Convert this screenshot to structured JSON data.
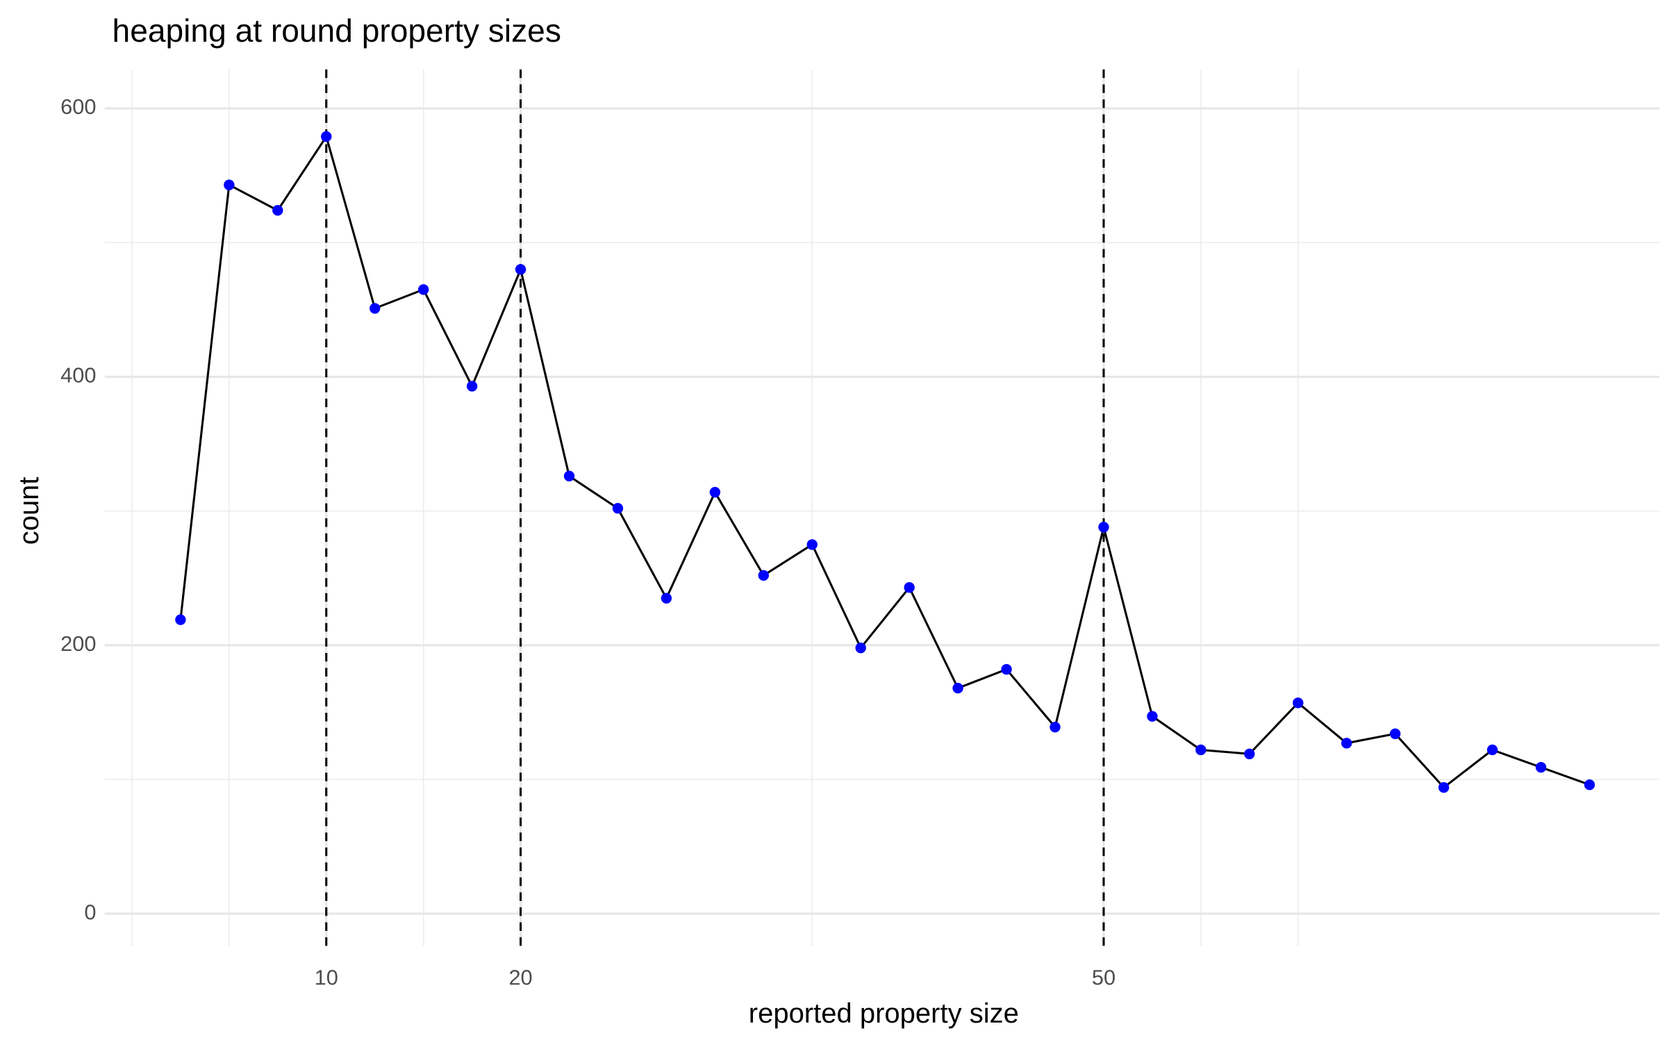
{
  "chart_data": {
    "type": "line",
    "title": "heaping at round property sizes",
    "x_label": "reported property size",
    "y_label": "count",
    "x": [
      2.5,
      5,
      7.5,
      10,
      12.5,
      15,
      17.5,
      20,
      22.5,
      25,
      27.5,
      30,
      32.5,
      35,
      37.5,
      40,
      42.5,
      45,
      47.5,
      50,
      52.5,
      55,
      57.5,
      60,
      62.5,
      65,
      67.5,
      70,
      72.5,
      75
    ],
    "series": [
      {
        "name": "count",
        "color": "#000000",
        "point_color": "#0000ff",
        "values": [
          219,
          543,
          524,
          579,
          451,
          465,
          393,
          480,
          326,
          302,
          235,
          314,
          252,
          275,
          198,
          243,
          168,
          182,
          139,
          288,
          147,
          122,
          119,
          157,
          127,
          134,
          94,
          122,
          109,
          96
        ]
      }
    ],
    "xlim": [
      -1.4,
      78.6
    ],
    "xticks": [
      10,
      20,
      50
    ],
    "xminor": [
      0,
      5,
      15,
      35,
      55,
      60
    ],
    "ylim": [
      -24,
      629
    ],
    "yticks": [
      0,
      200,
      400,
      600
    ],
    "yminor": [
      100,
      300,
      500
    ],
    "vlines": [
      10,
      20,
      50
    ],
    "grid": true
  }
}
